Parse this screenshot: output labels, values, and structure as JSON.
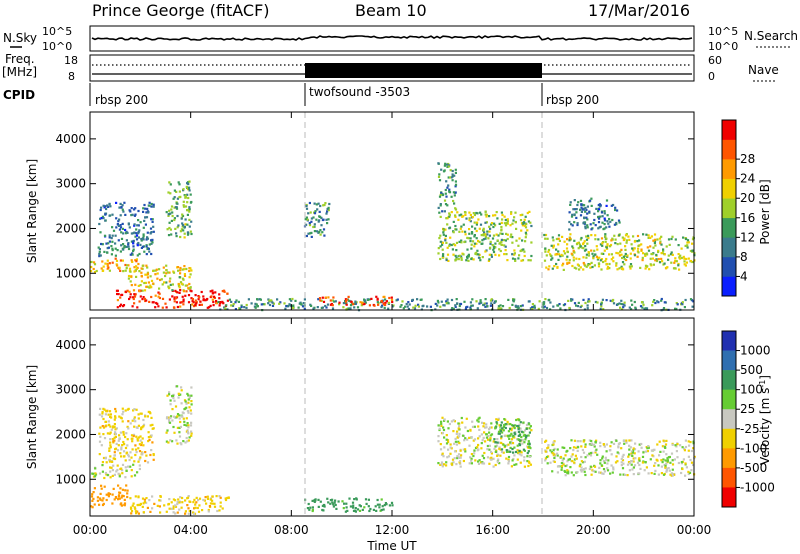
{
  "header": {
    "station": "Prince George (fitACF)",
    "beam": "Beam 10",
    "date": "17/Mar/2016"
  },
  "strip_labels": {
    "nsky": "N.Sky",
    "nsearch": "N.Search",
    "freq_1": "Freq.",
    "freq_2": "[MHz]",
    "nave": "Nave",
    "cpid": "CPID",
    "nsky_ticks": [
      "10^5",
      "10^0"
    ],
    "nsearch_ticks": [
      "10^5",
      "10^0"
    ],
    "freq_ticks": [
      "18",
      "8"
    ],
    "nave_ticks": [
      "60",
      "0"
    ]
  },
  "cpid_segments": [
    {
      "label": "rbsp 200",
      "start_hour": 0.0
    },
    {
      "label": "twofsound -3503",
      "start_hour": 8.5
    },
    {
      "label": "rbsp 200",
      "start_hour": 18.0
    }
  ],
  "chart_data": [
    {
      "type": "heatmap",
      "ylabel": "Slant Range [km]",
      "xlim": [
        0,
        24
      ],
      "ylim": [
        180,
        4600
      ],
      "yticks": [
        1000,
        2000,
        3000,
        4000
      ],
      "colorbar": {
        "label": "Power [dB]",
        "ticks": [
          "4",
          "8",
          "12",
          "16",
          "20",
          "24",
          "28"
        ],
        "range": [
          0,
          30
        ],
        "colors": [
          "#0a1fff",
          "#204fb0",
          "#3a7b8c",
          "#3a9a5a",
          "#9fcf2a",
          "#f0d000",
          "#ff9a00",
          "#ff5500",
          "#f00000"
        ]
      },
      "echo_regions": [
        {
          "t0": 0.0,
          "t1": 2.0,
          "r0": 1050,
          "r1": 1350,
          "value": 20
        },
        {
          "t0": 0.3,
          "t1": 2.5,
          "r0": 1400,
          "r1": 2600,
          "value": 8
        },
        {
          "t0": 1.0,
          "t1": 5.5,
          "r0": 250,
          "r1": 650,
          "value": 28
        },
        {
          "t0": 1.5,
          "t1": 4.0,
          "r0": 600,
          "r1": 1200,
          "value": 18
        },
        {
          "t0": 3.0,
          "t1": 4.0,
          "r0": 1800,
          "r1": 3100,
          "value": 12
        },
        {
          "t0": 5.0,
          "t1": 24.0,
          "r0": 200,
          "r1": 450,
          "value": 10
        },
        {
          "t0": 8.5,
          "t1": 9.5,
          "r0": 1800,
          "r1": 2600,
          "value": 10
        },
        {
          "t0": 9.0,
          "t1": 12.0,
          "r0": 300,
          "r1": 500,
          "value": 26
        },
        {
          "t0": 13.8,
          "t1": 17.5,
          "r0": 1300,
          "r1": 2400,
          "value": 14
        },
        {
          "t0": 13.8,
          "t1": 14.5,
          "r0": 2400,
          "r1": 3500,
          "value": 10
        },
        {
          "t0": 18.0,
          "t1": 24.0,
          "r0": 1100,
          "r1": 1900,
          "value": 16
        },
        {
          "t0": 19.0,
          "t1": 21.0,
          "r0": 2000,
          "r1": 2700,
          "value": 8
        }
      ]
    },
    {
      "type": "heatmap",
      "ylabel": "Slant Range [km]",
      "xlabel": "Time UT",
      "xlim": [
        0,
        24
      ],
      "ylim": [
        180,
        4600
      ],
      "xticks": [
        "00:00",
        "04:00",
        "08:00",
        "12:00",
        "16:00",
        "20:00",
        "00:00"
      ],
      "yticks": [
        1000,
        2000,
        3000,
        4000
      ],
      "colorbar": {
        "label": "Velocity [m s^-1]",
        "ticks": [
          "1000",
          "500",
          "100",
          "25",
          "-25",
          "-100",
          "-500",
          "-1000"
        ],
        "colors": [
          "#2030b0",
          "#2f6fb0",
          "#3a9a5a",
          "#66cc33",
          "#c8c8c0",
          "#f0d000",
          "#ff9a00",
          "#ff5500",
          "#f00000"
        ]
      },
      "echo_regions": [
        {
          "t0": 0.0,
          "t1": 2.0,
          "r0": 1050,
          "r1": 1350,
          "value": 0
        },
        {
          "t0": 0.3,
          "t1": 2.5,
          "r0": 1400,
          "r1": 2600,
          "value": -50
        },
        {
          "t0": 0.0,
          "t1": 1.5,
          "r0": 400,
          "r1": 900,
          "value": -300
        },
        {
          "t0": 1.5,
          "t1": 5.5,
          "r0": 250,
          "r1": 650,
          "value": -60
        },
        {
          "t0": 3.0,
          "t1": 4.0,
          "r0": 1800,
          "r1": 3100,
          "value": 0
        },
        {
          "t0": 8.5,
          "t1": 12.0,
          "r0": 300,
          "r1": 600,
          "value": 150
        },
        {
          "t0": 13.8,
          "t1": 17.5,
          "r0": 1300,
          "r1": 2400,
          "value": 0
        },
        {
          "t0": 16.0,
          "t1": 17.5,
          "r0": 1600,
          "r1": 2300,
          "value": 120
        },
        {
          "t0": 18.0,
          "t1": 24.0,
          "r0": 1100,
          "r1": 1900,
          "value": 0
        }
      ]
    }
  ]
}
